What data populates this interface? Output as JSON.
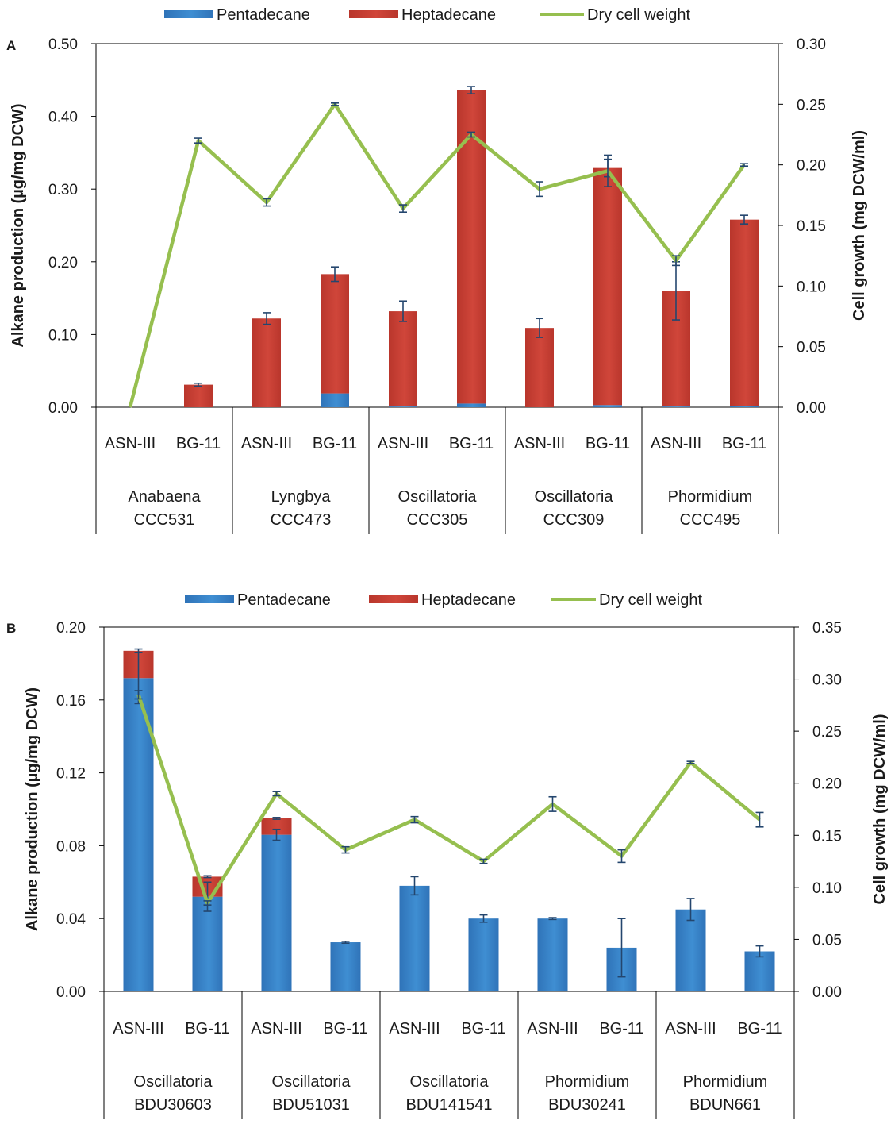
{
  "colors": {
    "pentadecane": "#3f8ed2",
    "heptadecane": "#d0463a",
    "dcw": "#96bf4f",
    "errorbar": "#24466e",
    "axis": "#000000"
  },
  "legend": {
    "pentadecane": "Pentadecane",
    "heptadecane": "Heptadecane",
    "dcw": "Dry cell weight"
  },
  "chart_data": [
    {
      "type": "bar",
      "panel": "A",
      "title": "",
      "ylabel": "Alkane production (µg/mg DCW)",
      "y2label": "Cell growth (mg DCW/ml)",
      "ylim": [
        0,
        0.5
      ],
      "yticks": [
        "0.00",
        "0.10",
        "0.20",
        "0.30",
        "0.40",
        "0.50"
      ],
      "y2lim": [
        0,
        0.3
      ],
      "y2ticks": [
        "0.00",
        "0.05",
        "0.10",
        "0.15",
        "0.20",
        "0.25",
        "0.30"
      ],
      "categories": [
        "ASN-III",
        "BG-11",
        "ASN-III",
        "BG-11",
        "ASN-III",
        "BG-11",
        "ASN-III",
        "BG-11",
        "ASN-III",
        "BG-11"
      ],
      "groups": [
        {
          "line1": "Anabaena",
          "line2": "CCC531"
        },
        {
          "line1": "Lyngbya",
          "line2": "CCC473"
        },
        {
          "line1": "Oscillatoria",
          "line2": "CCC305"
        },
        {
          "line1": "Oscillatoria",
          "line2": "CCC309"
        },
        {
          "line1": "Phormidium",
          "line2": "CCC495"
        }
      ],
      "series": [
        {
          "name": "Pentadecane",
          "type": "bar",
          "axis": "left",
          "values": [
            0,
            0,
            0,
            0.019,
            0.001,
            0.005,
            0,
            0.003,
            0.001,
            0.002
          ]
        },
        {
          "name": "Heptadecane",
          "type": "bar",
          "axis": "left",
          "values": [
            0,
            0.031,
            0.122,
            0.164,
            0.131,
            0.431,
            0.109,
            0.326,
            0.159,
            0.256
          ],
          "error": [
            0,
            0.002,
            0.008,
            0.01,
            0.014,
            0.005,
            0.013,
            0.012,
            0.04,
            0.006
          ]
        },
        {
          "name": "Dry cell weight",
          "type": "line",
          "axis": "right",
          "values": [
            0,
            0.22,
            0.169,
            0.25,
            0.164,
            0.225,
            0.18,
            0.195,
            0.121,
            0.2
          ],
          "error": [
            0,
            0.002,
            0.003,
            0.001,
            0.003,
            0.002,
            0.006,
            0.013,
            0.004,
            0.001
          ]
        }
      ]
    },
    {
      "type": "bar",
      "panel": "B",
      "title": "",
      "ylabel": "Alkane production (µg/mg DCW)",
      "y2label": "Cell growth (mg DCW/ml)",
      "ylim": [
        0,
        0.2
      ],
      "yticks": [
        "0.00",
        "0.04",
        "0.08",
        "0.12",
        "0.16",
        "0.20"
      ],
      "y2lim": [
        0,
        0.35
      ],
      "y2ticks": [
        "0.00",
        "0.05",
        "0.10",
        "0.15",
        "0.20",
        "0.25",
        "0.30",
        "0.35"
      ],
      "categories": [
        "ASN-III",
        "BG-11",
        "ASN-III",
        "BG-11",
        "ASN-III",
        "BG-11",
        "ASN-III",
        "BG-11",
        "ASN-III",
        "BG-11"
      ],
      "groups": [
        {
          "line1": "Oscillatoria",
          "line2": "BDU30603"
        },
        {
          "line1": "Oscillatoria",
          "line2": "BDU51031"
        },
        {
          "line1": "Oscillatoria",
          "line2": "BDU141541"
        },
        {
          "line1": "Phormidium",
          "line2": "BDU30241"
        },
        {
          "line1": "Phormidium",
          "line2": "BDUN661"
        }
      ],
      "series": [
        {
          "name": "Pentadecane",
          "type": "bar",
          "axis": "left",
          "values": [
            0.172,
            0.052,
            0.086,
            0.027,
            0.058,
            0.04,
            0.04,
            0.024,
            0.045,
            0.022
          ],
          "error": [
            0.014,
            0.008,
            0.003,
            0.0005,
            0.005,
            0.002,
            0.0005,
            0.016,
            0.006,
            0.003
          ]
        },
        {
          "name": "Heptadecane",
          "type": "bar",
          "axis": "left",
          "values": [
            0.015,
            0.011,
            0.009,
            0,
            0,
            0,
            0,
            0,
            0,
            0
          ],
          "error": [
            0.001,
            0.0005,
            0.0005,
            0,
            0,
            0,
            0,
            0,
            0,
            0
          ]
        },
        {
          "name": "Dry cell weight",
          "type": "line",
          "axis": "right",
          "values": [
            0.285,
            0.085,
            0.19,
            0.136,
            0.165,
            0.125,
            0.18,
            0.13,
            0.22,
            0.165
          ],
          "error": [
            0.004,
            0.002,
            0.002,
            0.003,
            0.003,
            0.002,
            0.007,
            0.006,
            0.001,
            0.007
          ]
        }
      ]
    }
  ]
}
